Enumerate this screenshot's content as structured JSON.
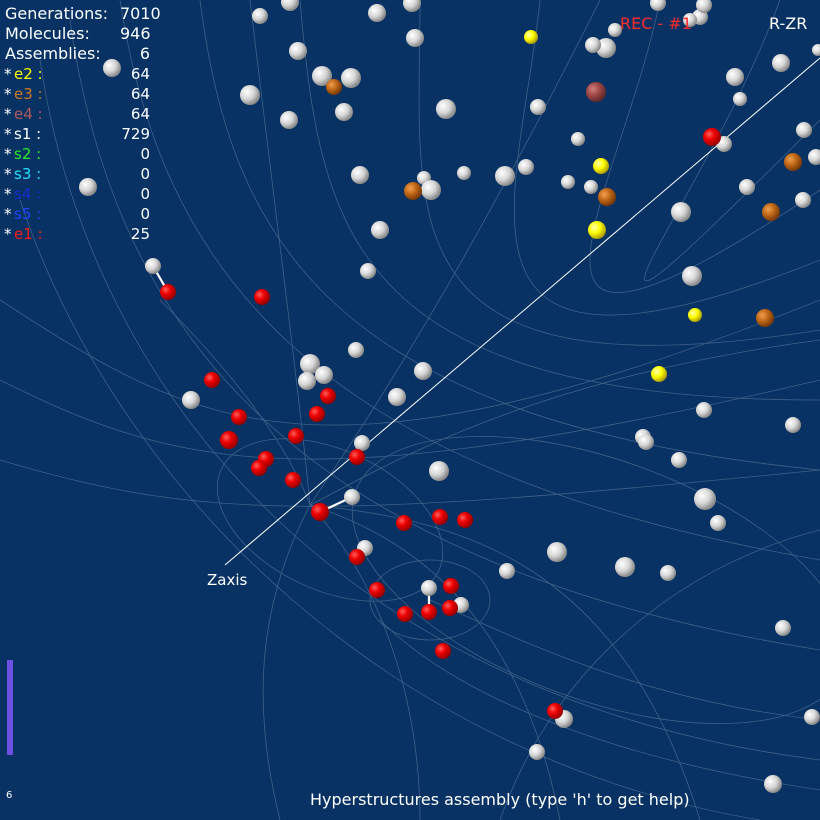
{
  "stats": {
    "generations_label": "Generations:",
    "generations_value": "7010",
    "molecules_label": "Molecules:",
    "molecules_value": "946",
    "assemblies_label": "Assemblies:",
    "assemblies_value": "6"
  },
  "types": [
    {
      "star": "*",
      "name": "e2 :",
      "value": "64",
      "color": "#ffff00"
    },
    {
      "star": "*",
      "name": "e3 :",
      "value": "64",
      "color": "#d07820"
    },
    {
      "star": "*",
      "name": "e4 :",
      "value": "64",
      "color": "#b05a5a"
    },
    {
      "star": "*",
      "name": "s1 :",
      "value": "729",
      "color": "#ffffff"
    },
    {
      "star": "*",
      "name": "s2 :",
      "value": "0",
      "color": "#22ee22"
    },
    {
      "star": "*",
      "name": "s3 :",
      "value": "0",
      "color": "#22e0ff"
    },
    {
      "star": "*",
      "name": "s4 :",
      "value": "0",
      "color": "#1a2ad0"
    },
    {
      "star": "*",
      "name": "s5 :",
      "value": "0",
      "color": "#2244ff"
    },
    {
      "star": "*",
      "name": "e1 :",
      "value": "25",
      "color": "#ff1a1a"
    }
  ],
  "header": {
    "rec_label": "REC - #1",
    "mode_label": "R-ZR"
  },
  "axis_label": "Zaxis",
  "footer_text": "Hyperstructures assembly (type 'h' to get help)",
  "corner_number": "6",
  "colors": {
    "background": "#073263",
    "grid": "#6f86a8",
    "rec": "#ff2a2a",
    "progress_bar": "#6f4fe0"
  }
}
